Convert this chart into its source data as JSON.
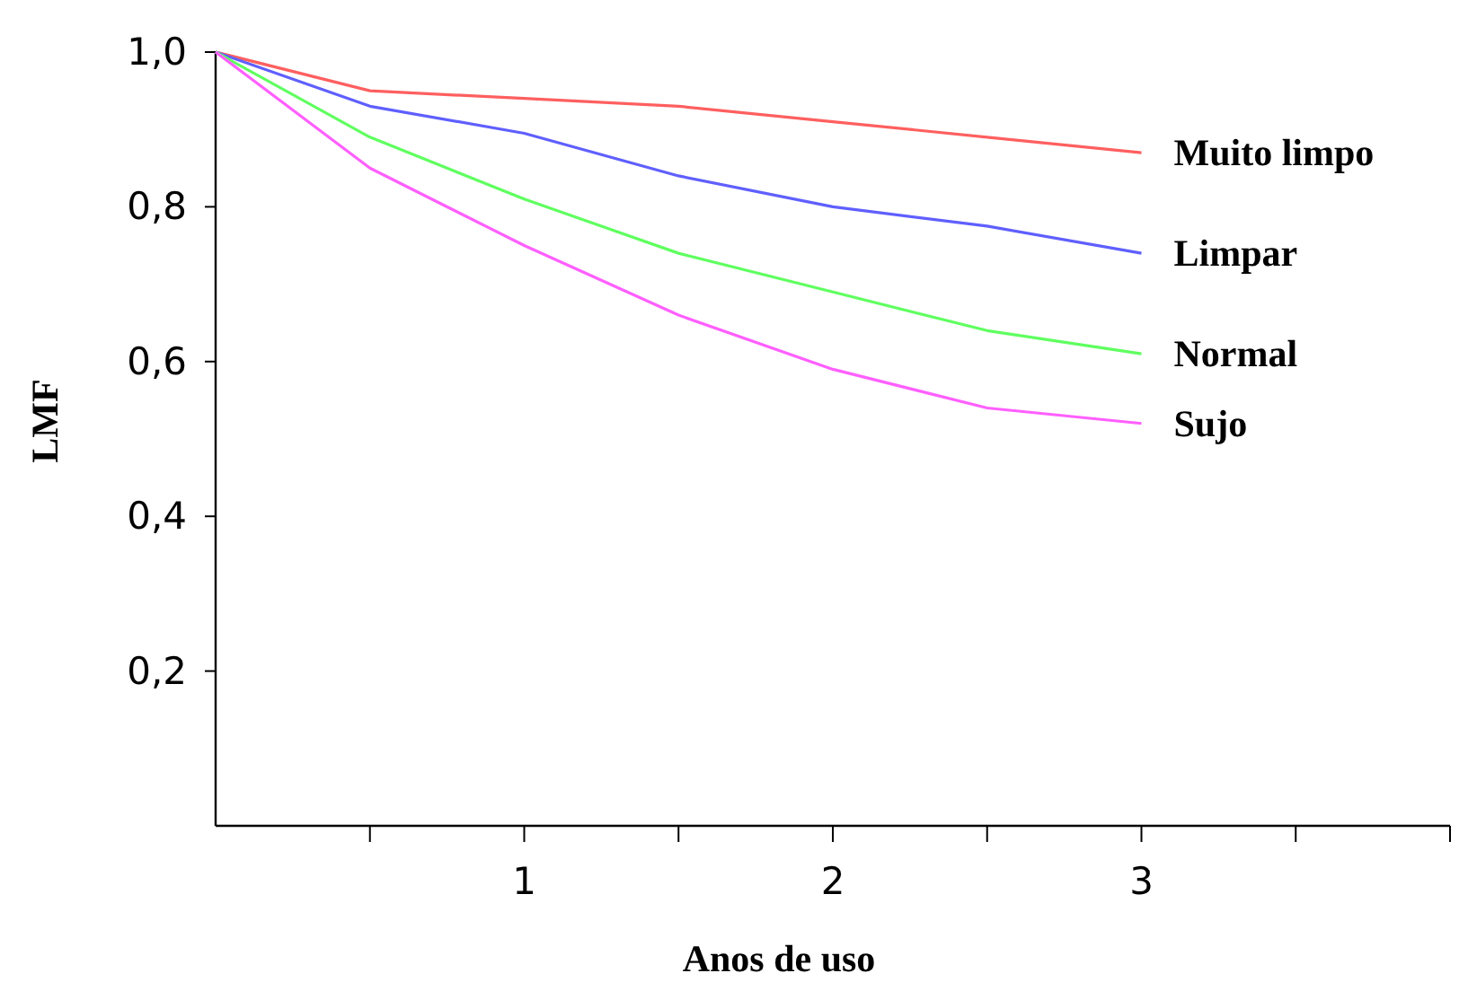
{
  "chart_data": {
    "type": "line",
    "xlabel": "Anos de uso",
    "ylabel": "LMF",
    "x": [
      0,
      0.5,
      1,
      1.5,
      2,
      2.5,
      3
    ],
    "series": [
      {
        "name": "Muito limpo",
        "color": "#ff5f5f",
        "values": [
          1.0,
          0.95,
          0.94,
          0.93,
          0.91,
          0.89,
          0.87
        ]
      },
      {
        "name": "Limpar",
        "color": "#5f5fff",
        "values": [
          1.0,
          0.93,
          0.895,
          0.84,
          0.8,
          0.775,
          0.74
        ]
      },
      {
        "name": "Normal",
        "color": "#5fff5f",
        "values": [
          1.0,
          0.89,
          0.81,
          0.74,
          0.69,
          0.64,
          0.61
        ]
      },
      {
        "name": "Sujo",
        "color": "#ff5fff",
        "values": [
          1.0,
          0.85,
          0.75,
          0.66,
          0.59,
          0.54,
          0.52
        ]
      }
    ],
    "xlim": [
      0,
      4
    ],
    "xticks": [
      {
        "value": 0.5,
        "label": null
      },
      1,
      {
        "value": 1.5,
        "label": null
      },
      2,
      {
        "value": 2.5,
        "label": null
      },
      3,
      {
        "value": 3.5,
        "label": null
      },
      {
        "value": 4,
        "label": null
      }
    ],
    "ylim": [
      0,
      1.0
    ],
    "yticks": [
      {
        "value": 0.2,
        "label": "0,2"
      },
      {
        "value": 0.4,
        "label": "0,4"
      },
      {
        "value": 0.6,
        "label": "0,6"
      },
      {
        "value": 0.8,
        "label": "0,8"
      },
      {
        "value": 1.0,
        "label": "1,0"
      }
    ],
    "grid": false,
    "legend": false,
    "marker": "none",
    "line_style": "solid"
  }
}
